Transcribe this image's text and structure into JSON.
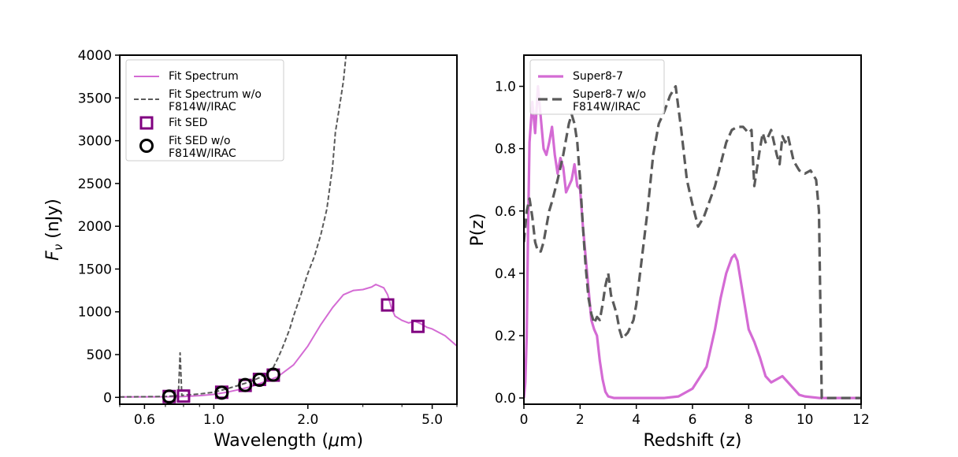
{
  "chart_data": [
    {
      "type": "line",
      "xscale": "log",
      "xlabel": "Wavelength (μm)",
      "ylabel": "F_ν (nJy)",
      "ylabel_main": "F",
      "ylabel_sub": "ν",
      "ylabel_unit": " (nJy)",
      "xlim": [
        0.5,
        6.0
      ],
      "ylim": [
        -80,
        4000
      ],
      "xticks": [
        0.6,
        1.0,
        2.0,
        5.0
      ],
      "xtick_labels": [
        "0.6",
        "1.0",
        "2.0",
        "5.0"
      ],
      "yticks": [
        0,
        500,
        1000,
        1500,
        2000,
        2500,
        3000,
        3500,
        4000
      ],
      "ytick_labels": [
        "0",
        "500",
        "1000",
        "1500",
        "2000",
        "2500",
        "3000",
        "3500",
        "4000"
      ],
      "legend": {
        "placement": "top-left",
        "entries": [
          {
            "label": "Fit Spectrum",
            "style": "solid-line",
            "color": "#d46bd4"
          },
          {
            "label": "Fit Spectrum w/o\nF814W/IRAC",
            "style": "dashed-line",
            "color": "#5a5a5a"
          },
          {
            "label": "Fit SED",
            "style": "square-marker",
            "color": "#800080"
          },
          {
            "label": "Fit SED w/o\nF814W/IRAC",
            "style": "circle-marker",
            "color": "#000000"
          }
        ]
      },
      "series": [
        {
          "name": "Fit Spectrum",
          "style": "solid",
          "color": "#d46bd4",
          "x": [
            0.5,
            0.65,
            0.75,
            0.8,
            0.9,
            1.0,
            1.1,
            1.2,
            1.3,
            1.4,
            1.5,
            1.6,
            1.8,
            2.0,
            2.2,
            2.4,
            2.6,
            2.8,
            3.0,
            3.2,
            3.3,
            3.5,
            3.6,
            3.7,
            3.8,
            4.0,
            4.2,
            4.4,
            4.6,
            4.8,
            5.0,
            5.5,
            6.0
          ],
          "y": [
            5,
            6,
            8,
            10,
            20,
            35,
            60,
            90,
            120,
            160,
            200,
            240,
            380,
            600,
            850,
            1050,
            1200,
            1250,
            1260,
            1290,
            1320,
            1280,
            1200,
            1050,
            950,
            900,
            870,
            890,
            860,
            820,
            800,
            720,
            600
          ]
        },
        {
          "name": "Fit Spectrum w/o F814W/IRAC",
          "style": "dashed",
          "color": "#5a5a5a",
          "x": [
            0.5,
            0.7,
            0.77,
            0.78,
            0.79,
            0.8,
            0.9,
            1.0,
            1.1,
            1.2,
            1.3,
            1.4,
            1.5,
            1.55,
            1.6,
            1.65,
            1.7,
            1.75,
            1.8,
            1.9,
            2.0,
            2.1,
            2.2,
            2.3,
            2.4,
            2.45,
            2.5,
            2.55,
            2.6,
            2.65
          ],
          "y": [
            5,
            10,
            20,
            520,
            20,
            25,
            40,
            60,
            100,
            140,
            180,
            230,
            300,
            350,
            450,
            560,
            680,
            800,
            950,
            1200,
            1450,
            1650,
            1900,
            2200,
            2700,
            3100,
            3300,
            3500,
            3700,
            4000
          ]
        }
      ],
      "points": [
        {
          "name": "Fit SED",
          "marker": "square",
          "color": "#800080",
          "x": [
            0.72,
            0.8,
            1.06,
            1.26,
            1.4,
            1.55,
            3.6,
            4.5
          ],
          "y": [
            10,
            15,
            60,
            140,
            210,
            260,
            1080,
            830
          ]
        },
        {
          "name": "Fit SED w/o F814W/IRAC",
          "marker": "circle",
          "color": "#000000",
          "x": [
            0.72,
            1.06,
            1.26,
            1.4,
            1.55
          ],
          "y": [
            10,
            55,
            145,
            205,
            265
          ]
        }
      ]
    },
    {
      "type": "line",
      "xlabel": "Redshift (z)",
      "ylabel": "P(z)",
      "xlim": [
        0,
        12
      ],
      "ylim": [
        -0.02,
        1.1
      ],
      "xticks": [
        0,
        2,
        4,
        6,
        8,
        10,
        12
      ],
      "xtick_labels": [
        "0",
        "2",
        "4",
        "6",
        "8",
        "10",
        "12"
      ],
      "yticks": [
        0.0,
        0.2,
        0.4,
        0.6,
        0.8,
        1.0
      ],
      "ytick_labels": [
        "0.0",
        "0.2",
        "0.4",
        "0.6",
        "0.8",
        "1.0"
      ],
      "legend": {
        "placement": "top-left",
        "entries": [
          {
            "label": "Super8-7",
            "style": "solid-line",
            "color": "#d46bd4"
          },
          {
            "label": "Super8-7 w/o\nF814W/IRAC",
            "style": "dashed-line",
            "color": "#5a5a5a"
          }
        ]
      },
      "series": [
        {
          "name": "Super8-7",
          "style": "solid",
          "color": "#d46bd4",
          "x": [
            0.0,
            0.05,
            0.1,
            0.15,
            0.2,
            0.3,
            0.4,
            0.5,
            0.6,
            0.7,
            0.8,
            0.9,
            1.0,
            1.1,
            1.2,
            1.3,
            1.4,
            1.5,
            1.6,
            1.7,
            1.8,
            1.9,
            2.0,
            2.1,
            2.2,
            2.3,
            2.4,
            2.5,
            2.6,
            2.7,
            2.8,
            2.9,
            3.0,
            3.2,
            3.5,
            4.0,
            4.5,
            5.0,
            5.5,
            6.0,
            6.5,
            6.8,
            7.0,
            7.2,
            7.4,
            7.5,
            7.6,
            7.8,
            8.0,
            8.2,
            8.4,
            8.6,
            8.8,
            9.0,
            9.2,
            9.4,
            9.6,
            9.8,
            10.0,
            10.5,
            11.0,
            12.0
          ],
          "y": [
            0.0,
            0.05,
            0.2,
            0.55,
            0.82,
            0.95,
            0.85,
            1.0,
            0.9,
            0.8,
            0.78,
            0.82,
            0.87,
            0.78,
            0.72,
            0.77,
            0.74,
            0.66,
            0.68,
            0.7,
            0.75,
            0.68,
            0.67,
            0.55,
            0.45,
            0.35,
            0.25,
            0.22,
            0.2,
            0.12,
            0.06,
            0.02,
            0.005,
            0.0,
            0.0,
            0.0,
            0.0,
            0.0,
            0.005,
            0.03,
            0.1,
            0.22,
            0.32,
            0.4,
            0.45,
            0.46,
            0.44,
            0.33,
            0.22,
            0.18,
            0.13,
            0.07,
            0.05,
            0.06,
            0.07,
            0.05,
            0.03,
            0.01,
            0.005,
            0.0,
            0.0,
            0.0
          ]
        },
        {
          "name": "Super8-7 w/o F814W/IRAC",
          "style": "dashed",
          "color": "#5a5a5a",
          "x": [
            0.0,
            0.1,
            0.2,
            0.3,
            0.4,
            0.5,
            0.6,
            0.7,
            0.8,
            0.9,
            1.0,
            1.2,
            1.4,
            1.6,
            1.7,
            1.8,
            1.9,
            2.0,
            2.1,
            2.2,
            2.3,
            2.4,
            2.5,
            2.6,
            2.7,
            2.8,
            2.9,
            3.0,
            3.1,
            3.2,
            3.3,
            3.4,
            3.5,
            3.6,
            3.7,
            3.8,
            3.9,
            4.0,
            4.2,
            4.4,
            4.6,
            4.8,
            5.0,
            5.2,
            5.4,
            5.6,
            5.8,
            6.0,
            6.2,
            6.4,
            6.6,
            6.8,
            7.0,
            7.2,
            7.4,
            7.6,
            7.8,
            8.0,
            8.1,
            8.2,
            8.3,
            8.4,
            8.5,
            8.6,
            8.8,
            9.0,
            9.1,
            9.2,
            9.3,
            9.4,
            9.6,
            9.8,
            10.0,
            10.2,
            10.4,
            10.5,
            10.55,
            10.6,
            11.0,
            12.0
          ],
          "y": [
            0.5,
            0.6,
            0.64,
            0.58,
            0.5,
            0.47,
            0.47,
            0.5,
            0.55,
            0.6,
            0.63,
            0.7,
            0.78,
            0.88,
            0.91,
            0.88,
            0.82,
            0.7,
            0.55,
            0.42,
            0.32,
            0.27,
            0.24,
            0.26,
            0.25,
            0.3,
            0.36,
            0.4,
            0.33,
            0.3,
            0.27,
            0.22,
            0.19,
            0.2,
            0.21,
            0.23,
            0.25,
            0.3,
            0.45,
            0.6,
            0.78,
            0.88,
            0.92,
            0.97,
            1.0,
            0.86,
            0.7,
            0.62,
            0.55,
            0.58,
            0.63,
            0.68,
            0.75,
            0.82,
            0.86,
            0.87,
            0.87,
            0.85,
            0.86,
            0.68,
            0.74,
            0.8,
            0.85,
            0.82,
            0.86,
            0.78,
            0.75,
            0.84,
            0.82,
            0.84,
            0.76,
            0.73,
            0.72,
            0.73,
            0.7,
            0.6,
            0.3,
            0.0,
            0.0,
            0.0
          ]
        }
      ]
    }
  ]
}
